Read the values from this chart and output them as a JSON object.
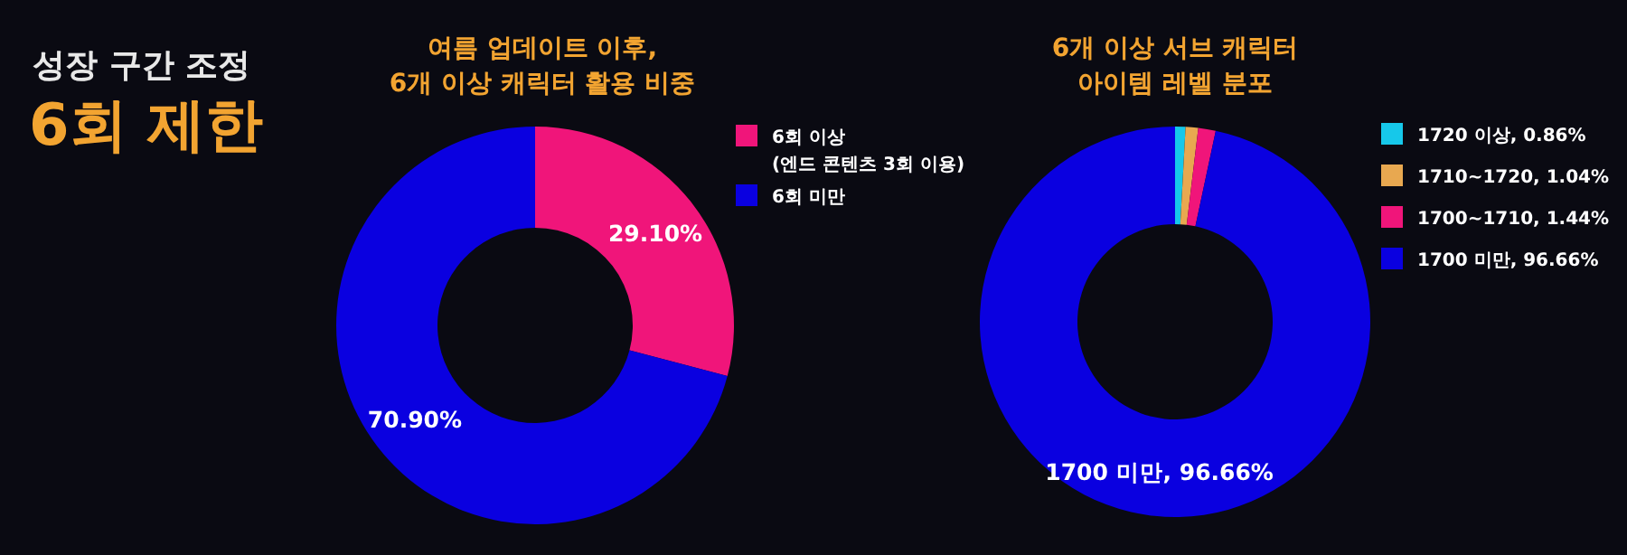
{
  "chart_data": [
    {
      "type": "other",
      "title": "성장 구간 조정",
      "subtitle": "6회 제한"
    },
    {
      "type": "donut",
      "title": "여름 업데이트 이후,\n6개 이상 캐릭터 활용 비중",
      "legend": "right",
      "categories": [
        "6회 이상\n(엔드 콘텐츠 3회 이용)",
        "6회 미만"
      ],
      "values": [
        29.1,
        70.9
      ],
      "colors": [
        "#f0157a",
        "#0a00e0"
      ],
      "value_labels": [
        "29.10%",
        "70.90%"
      ]
    },
    {
      "type": "donut",
      "title": "6개 이상 서브 캐릭터\n아이템 레벨 분포",
      "legend": "right",
      "categories": [
        "1720 이상, 0.86%",
        "1710~1720, 1.04%",
        "1700~1710, 1.44%",
        "1700 미만, 96.66%"
      ],
      "values": [
        0.86,
        1.04,
        1.44,
        96.66
      ],
      "colors": [
        "#16c8ea",
        "#e8a850",
        "#f0157a",
        "#0a00e0"
      ],
      "value_labels": [
        null,
        null,
        null,
        "1700 미만, 96.66%"
      ]
    }
  ]
}
